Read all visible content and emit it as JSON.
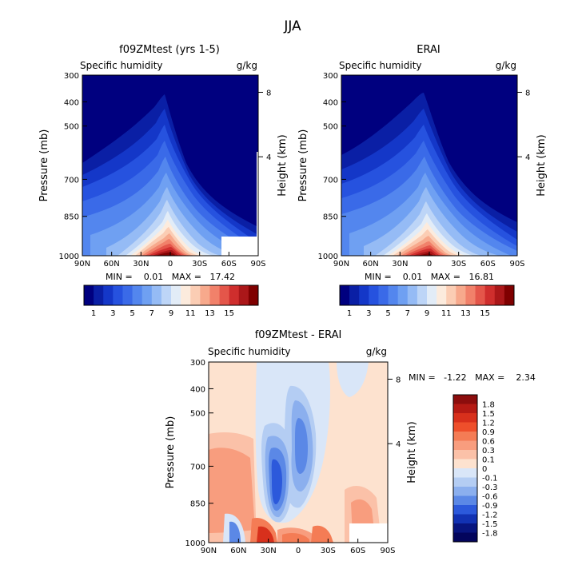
{
  "figure": {
    "title": "JJA"
  },
  "chart_data": [
    {
      "type": "heatmap",
      "title": "f09ZMtest (yrs 1-5)",
      "variable": "Specific humidity",
      "units": "g/kg",
      "ylabel": "Pressure (mb)",
      "ylabel_right": "Height (km)",
      "x_ticks": [
        "90N",
        "60N",
        "30N",
        "0",
        "30S",
        "60S",
        "90S"
      ],
      "y_ticks": [
        "300",
        "400",
        "500",
        "700",
        "850",
        "1000"
      ],
      "y_ticks_right": [
        "8",
        "4"
      ],
      "stats_text": "MIN =    0.01   MAX =   17.42",
      "colorbar": {
        "labels": [
          "1",
          "3",
          "5",
          "7",
          "9",
          "11",
          "13",
          "15"
        ],
        "colors": [
          "#00007f",
          "#0a1fa5",
          "#1437c8",
          "#2652df",
          "#3a6ae8",
          "#5386ee",
          "#6fa0f2",
          "#95bbf5",
          "#bdd5f7",
          "#e2ecf7",
          "#fcebdd",
          "#fbcdb4",
          "#f7a98c",
          "#f1816a",
          "#e4564a",
          "#cf2e2d",
          "#ab1719",
          "#7f0000"
        ]
      },
      "shading": "humidity"
    },
    {
      "type": "heatmap",
      "title": "ERAI",
      "variable": "Specific humidity",
      "units": "g/kg",
      "ylabel": "Pressure (mb)",
      "ylabel_right": "Height (km)",
      "x_ticks": [
        "90N",
        "60N",
        "30N",
        "0",
        "30S",
        "60S",
        "90S"
      ],
      "y_ticks": [
        "300",
        "400",
        "500",
        "700",
        "850",
        "1000"
      ],
      "y_ticks_right": [
        "8",
        "4"
      ],
      "stats_text": "MIN =    0.01   MAX =   16.81",
      "colorbar": {
        "labels": [
          "1",
          "3",
          "5",
          "7",
          "9",
          "11",
          "13",
          "15"
        ],
        "colors": [
          "#00007f",
          "#0a1fa5",
          "#1437c8",
          "#2652df",
          "#3a6ae8",
          "#5386ee",
          "#6fa0f2",
          "#95bbf5",
          "#bdd5f7",
          "#e2ecf7",
          "#fcebdd",
          "#fbcdb4",
          "#f7a98c",
          "#f1816a",
          "#e4564a",
          "#cf2e2d",
          "#ab1719",
          "#7f0000"
        ]
      },
      "shading": "humidity"
    },
    {
      "type": "heatmap",
      "title": "f09ZMtest - ERAI",
      "variable": "Specific humidity",
      "units": "g/kg",
      "ylabel": "Pressure (mb)",
      "ylabel_right": "Height (km)",
      "x_ticks": [
        "90N",
        "60N",
        "30N",
        "0",
        "30S",
        "60S",
        "90S"
      ],
      "y_ticks": [
        "300",
        "400",
        "500",
        "700",
        "850",
        "1000"
      ],
      "y_ticks_right": [
        "8",
        "4"
      ],
      "stats_text": "MIN =   -1.22   MAX =    2.34",
      "colorbar": {
        "labels": [
          "1.8",
          "1.5",
          "1.2",
          "0.9",
          "0.6",
          "0.3",
          "0.1",
          "0",
          "-0.1",
          "-0.3",
          "-0.6",
          "-0.9",
          "-1.2",
          "-1.5",
          "-1.8"
        ],
        "colors": [
          "#8c0d0d",
          "#b51a14",
          "#d8301c",
          "#ee4f2b",
          "#f47c55",
          "#f89d7e",
          "#fbc1a8",
          "#fde2cf",
          "#d9e6f8",
          "#b4cdf3",
          "#8bafee",
          "#5b88e6",
          "#2c59db",
          "#1232b3",
          "#08157f",
          "#03055c"
        ]
      },
      "shading": "difference"
    }
  ]
}
